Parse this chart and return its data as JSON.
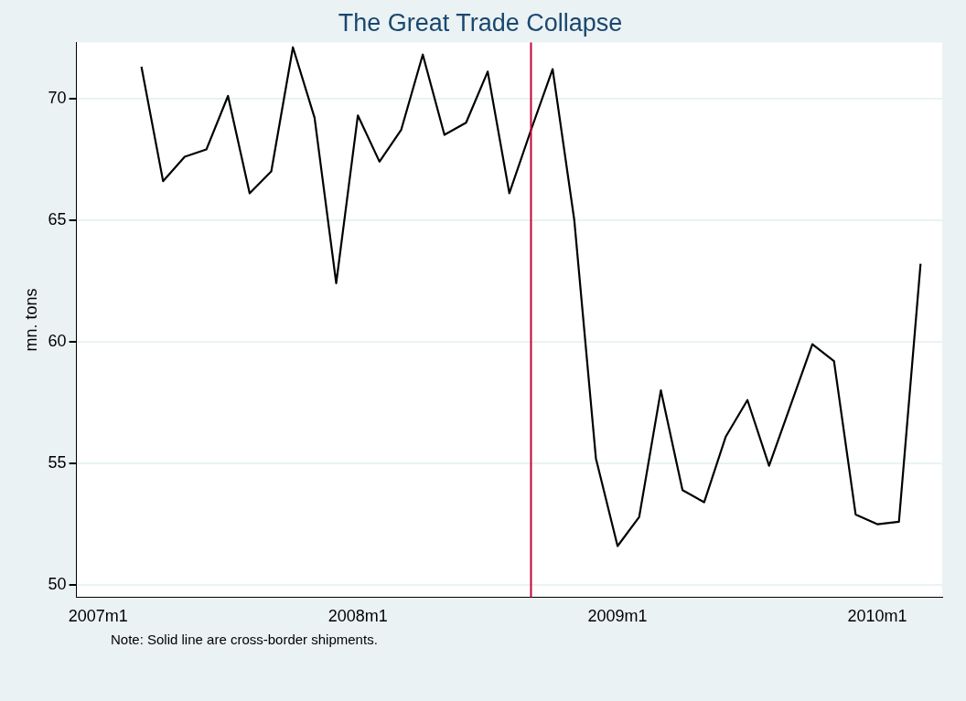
{
  "chart_data": {
    "type": "line",
    "title": "The Great Trade Collapse",
    "ylabel": "mn. tons",
    "x": [
      "2007-03",
      "2007-04",
      "2007-05",
      "2007-06",
      "2007-07",
      "2007-08",
      "2007-09",
      "2007-10",
      "2007-11",
      "2007-12",
      "2008-01",
      "2008-02",
      "2008-03",
      "2008-04",
      "2008-05",
      "2008-06",
      "2008-07",
      "2008-08",
      "2008-09",
      "2008-10",
      "2008-11",
      "2008-12",
      "2009-01",
      "2009-02",
      "2009-03",
      "2009-04",
      "2009-05",
      "2009-06",
      "2009-07",
      "2009-08",
      "2009-09",
      "2009-10",
      "2009-11",
      "2009-12",
      "2010-01",
      "2010-02",
      "2010-03"
    ],
    "series": [
      {
        "color": "#000000",
        "values": [
          71.3,
          66.6,
          67.6,
          67.9,
          70.1,
          66.1,
          67.0,
          72.1,
          69.2,
          62.4,
          69.3,
          67.4,
          68.7,
          71.8,
          68.5,
          69.0,
          71.1,
          66.1,
          68.7,
          71.2,
          65.0,
          55.2,
          51.6,
          52.8,
          58.0,
          53.9,
          53.4,
          56.1,
          57.6,
          54.9,
          57.4,
          59.9,
          59.2,
          52.9,
          52.5,
          52.6,
          63.2
        ]
      }
    ],
    "xlim": [
      "2006-12",
      "2010-04"
    ],
    "xticks": [
      {
        "value": "2007-01",
        "label": "2007m1"
      },
      {
        "value": "2008-01",
        "label": "2008m1"
      },
      {
        "value": "2009-01",
        "label": "2009m1"
      },
      {
        "value": "2010-01",
        "label": "2010m1"
      }
    ],
    "ylim": [
      49.5,
      72.3
    ],
    "yticks": [
      50,
      55,
      60,
      65,
      70
    ],
    "grid": "y",
    "marker": "none",
    "line_style": "solid",
    "ref_lines": [
      {
        "axis": "x",
        "value": "2008-09",
        "color": "#c10534"
      }
    ],
    "annotations": [
      "Note: Solid line are cross-border shipments."
    ]
  }
}
